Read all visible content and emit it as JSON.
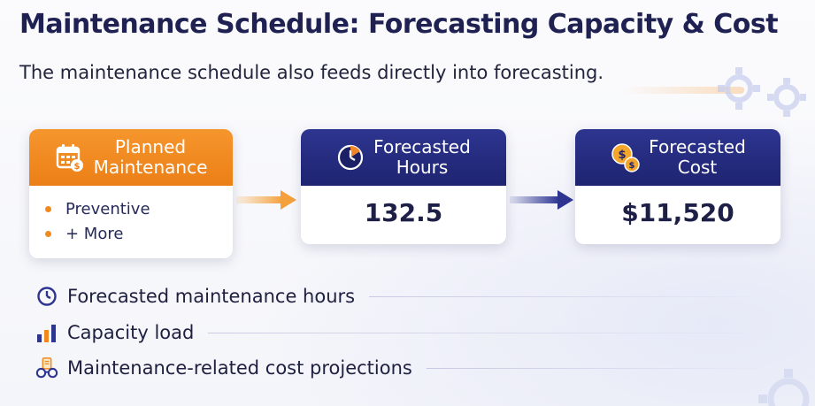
{
  "header": {
    "title": "Maintenance Schedule: Forecasting Capacity & Cost",
    "subtitle": "The maintenance schedule also feeds directly into forecasting."
  },
  "cards": {
    "planned": {
      "title": "Planned\nMaintenance",
      "icon": "calendar-dollar-icon",
      "bullets": [
        "Preventive",
        "+ More"
      ]
    },
    "hours": {
      "title": "Forecasted\nHours",
      "icon": "clock-icon",
      "value": "132.5"
    },
    "cost": {
      "title": "Forecasted\nCost",
      "icon": "coins-dollar-icon",
      "value": "$11,520"
    }
  },
  "features": [
    {
      "label": "Forecasted maintenance hours",
      "icon": "clock-icon"
    },
    {
      "label": "Capacity load",
      "icon": "bar-chart-icon"
    },
    {
      "label": "Maintenance-related cost projections",
      "icon": "glasses-clipboard-icon"
    }
  ],
  "colors": {
    "orange": "#ef8a1f",
    "navy": "#232a7e",
    "text": "#1f2152",
    "background": "#f6f7fb"
  }
}
